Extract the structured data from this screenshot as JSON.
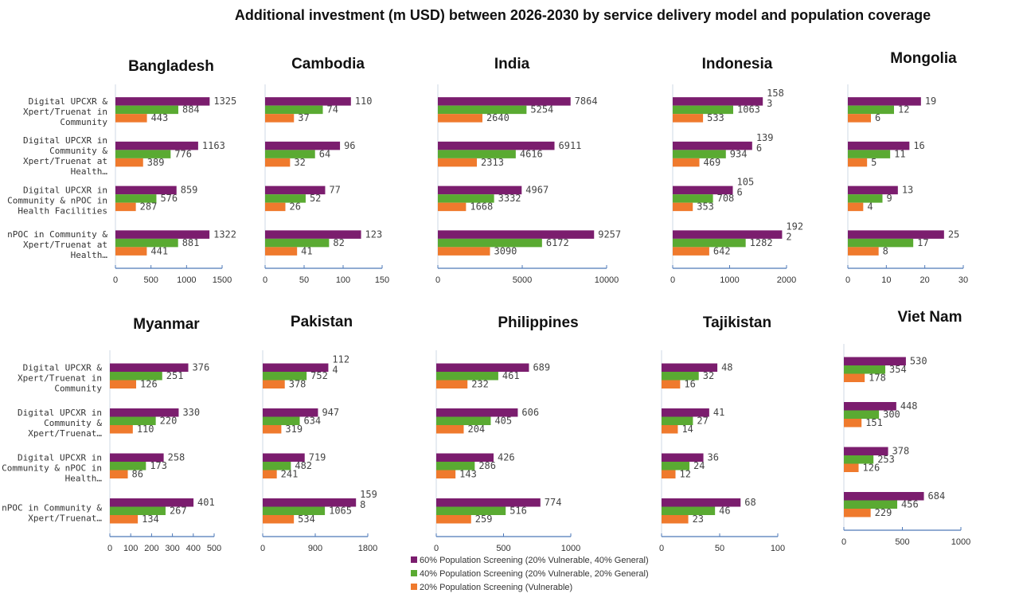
{
  "title": "Additional investment (m USD) between 2026-2030 by service delivery model and population coverage",
  "colors": {
    "s60": "#7b1d6e",
    "s40": "#5aaa32",
    "s20": "#ef7a2d",
    "axis": "#4e79b8"
  },
  "chart_data": {
    "type": "bar",
    "orientation": "horizontal",
    "title": "Additional investment (m USD) between 2026-2030 by service delivery model and population coverage",
    "series_names": [
      "60% Population Screening (20% Vulnerable, 40% General)",
      "40% Population Screening (20% Vulnerable, 20% General)",
      "20% Population Screening (Vulnerable)"
    ],
    "legend_position": "bottom-center",
    "panels": [
      {
        "country": "Bangladesh",
        "categories": [
          "Digital UPCXR & Xpert/Truenat in Community",
          "Digital UPCXR in Community & Xpert/Truenat at Health…",
          "Digital UPCXR in Community & nPOC in Health Facilities",
          "nPOC in Community & Xpert/Truenat at Health…"
        ],
        "values": [
          [
            1325,
            1163,
            859,
            1322
          ],
          [
            884,
            776,
            576,
            881
          ],
          [
            443,
            389,
            287,
            441
          ]
        ],
        "value_labels": [
          [
            "1325",
            "1163",
            "859",
            "1322"
          ],
          [
            "884",
            "776",
            "576",
            "881"
          ],
          [
            "443",
            "389",
            "287",
            "441"
          ]
        ],
        "xlim": [
          0,
          1500
        ],
        "ticks": [
          "0",
          "500",
          "1000",
          "1500"
        ]
      },
      {
        "country": "Cambodia",
        "values": [
          [
            110,
            96,
            77,
            123
          ],
          [
            74,
            64,
            52,
            82
          ],
          [
            37,
            32,
            26,
            41
          ]
        ],
        "value_labels": [
          [
            "110",
            "96",
            "77",
            "123"
          ],
          [
            "74",
            "64",
            "52",
            "82"
          ],
          [
            "37",
            "32",
            "26",
            "41"
          ]
        ],
        "xlim": [
          0,
          150
        ],
        "ticks": [
          "0",
          "50",
          "100",
          "150"
        ]
      },
      {
        "country": "India",
        "values": [
          [
            7864,
            6911,
            4967,
            9257
          ],
          [
            5254,
            4616,
            3332,
            6172
          ],
          [
            2640,
            2313,
            1668,
            3090
          ]
        ],
        "value_labels": [
          [
            "7864",
            "6911",
            "4967",
            "9257"
          ],
          [
            "5254",
            "4616",
            "3332",
            "6172"
          ],
          [
            "2640",
            "2313",
            "1668",
            "3090"
          ]
        ],
        "xlim": [
          0,
          10000
        ],
        "ticks": [
          "0",
          "5000",
          "10000"
        ]
      },
      {
        "country": "Indonesia",
        "values": [
          [
            1583,
            1396,
            1056,
            1922
          ],
          [
            1063,
            934,
            708,
            1282
          ],
          [
            533,
            469,
            353,
            642
          ]
        ],
        "value_labels": [
          [
            "158\n3",
            "139\n6",
            "105\n6",
            "192\n2"
          ],
          [
            "1063",
            "934",
            "708",
            "1282"
          ],
          [
            "533",
            "469",
            "353",
            "642"
          ]
        ],
        "xlim": [
          0,
          2000
        ],
        "ticks": [
          "0",
          "1000",
          "2000"
        ]
      },
      {
        "country": "Mongolia",
        "values": [
          [
            19,
            16,
            13,
            25
          ],
          [
            12,
            11,
            9,
            17
          ],
          [
            6,
            5,
            4,
            8
          ]
        ],
        "value_labels": [
          [
            "19",
            "16",
            "13",
            "25"
          ],
          [
            "12",
            "11",
            "9",
            "17"
          ],
          [
            "6",
            "5",
            "4",
            "8"
          ]
        ],
        "xlim": [
          0,
          30
        ],
        "ticks": [
          "0",
          "10",
          "20",
          "30"
        ]
      },
      {
        "country": "Myanmar",
        "categories": [
          "Digital UPCXR & Xpert/Truenat in Community",
          "Digital UPCXR in Community & Xpert/Truenat…",
          "Digital UPCXR in Community & nPOC in Health…",
          "nPOC in Community & Xpert/Truenat…"
        ],
        "values": [
          [
            376,
            330,
            258,
            401
          ],
          [
            251,
            220,
            173,
            267
          ],
          [
            126,
            110,
            86,
            134
          ]
        ],
        "value_labels": [
          [
            "376",
            "330",
            "258",
            "401"
          ],
          [
            "251",
            "220",
            "173",
            "267"
          ],
          [
            "126",
            "110",
            "86",
            "134"
          ]
        ],
        "xlim": [
          0,
          500
        ],
        "ticks": [
          "0",
          "100",
          "200",
          "300",
          "400",
          "500"
        ]
      },
      {
        "country": "Pakistan",
        "values": [
          [
            1124,
            947,
            719,
            1598
          ],
          [
            752,
            634,
            482,
            1065
          ],
          [
            378,
            319,
            241,
            534
          ]
        ],
        "value_labels": [
          [
            "112\n4",
            "947",
            "719",
            "159\n8"
          ],
          [
            "752",
            "634",
            "482",
            "1065"
          ],
          [
            "378",
            "319",
            "241",
            "534"
          ]
        ],
        "xlim": [
          0,
          1800
        ],
        "ticks": [
          "0",
          "900",
          "1800"
        ]
      },
      {
        "country": "Philippines",
        "values": [
          [
            689,
            606,
            426,
            774
          ],
          [
            461,
            405,
            286,
            516
          ],
          [
            232,
            204,
            143,
            259
          ]
        ],
        "value_labels": [
          [
            "689",
            "606",
            "426",
            "774"
          ],
          [
            "461",
            "405",
            "286",
            "516"
          ],
          [
            "232",
            "204",
            "143",
            "259"
          ]
        ],
        "xlim": [
          0,
          1000
        ],
        "ticks": [
          "0",
          "500",
          "1000"
        ]
      },
      {
        "country": "Tajikistan",
        "values": [
          [
            48,
            41,
            36,
            68
          ],
          [
            32,
            27,
            24,
            46
          ],
          [
            16,
            14,
            12,
            23
          ]
        ],
        "value_labels": [
          [
            "48",
            "41",
            "36",
            "68"
          ],
          [
            "32",
            "27",
            "24",
            "46"
          ],
          [
            "16",
            "14",
            "12",
            "23"
          ]
        ],
        "xlim": [
          0,
          100
        ],
        "ticks": [
          "0",
          "50",
          "100"
        ]
      },
      {
        "country": "Viet Nam",
        "values": [
          [
            530,
            448,
            378,
            684
          ],
          [
            354,
            300,
            253,
            456
          ],
          [
            178,
            151,
            126,
            229
          ]
        ],
        "value_labels": [
          [
            "530",
            "448",
            "378",
            "684"
          ],
          [
            "354",
            "300",
            "253",
            "456"
          ],
          [
            "178",
            "151",
            "126",
            "229"
          ]
        ],
        "xlim": [
          0,
          1000
        ],
        "ticks": [
          "0",
          "500",
          "1000"
        ]
      }
    ]
  }
}
